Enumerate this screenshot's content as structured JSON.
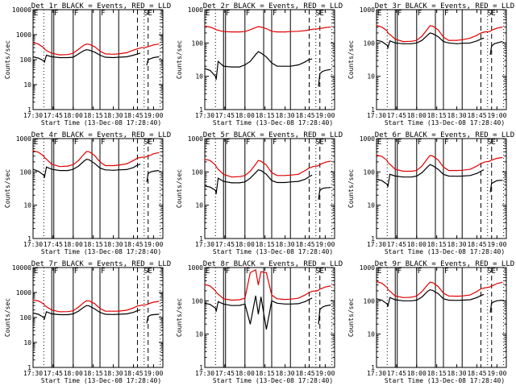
{
  "colors": {
    "events": "#000000",
    "lld": "#e00000",
    "background": "#ffffff"
  },
  "chart_data": {
    "type": "line",
    "grid": false,
    "xlabel": "Start Time (13-Dec-08 17:28:40)",
    "ylabel": "Counts/sec",
    "x_tick_labels": [
      "17:30",
      "17:45",
      "18:00",
      "18:15",
      "18:30",
      "18:45",
      "19:00"
    ],
    "x_ticks_minutes": [
      0,
      15,
      30,
      45,
      60,
      75,
      90
    ],
    "xlim_minutes": [
      0,
      97
    ],
    "vertical_markers": {
      "solid_minutes": [
        14,
        15.5,
        30,
        44,
        50,
        64
      ],
      "dotted_minutes": [
        8,
        83,
        95
      ],
      "dashed_minutes": [
        78,
        86
      ],
      "labels": [
        {
          "text": "E",
          "minute": 0
        },
        {
          "text": "F",
          "minute": 15
        },
        {
          "text": "F",
          "minute": 30
        },
        {
          "text": "F",
          "minute": 50
        },
        {
          "text": "SE",
          "minute": 82
        }
      ]
    },
    "x_minutes": [
      0,
      4,
      8,
      8.5,
      10,
      14,
      20,
      26,
      30,
      34,
      38,
      40,
      42,
      46,
      50,
      54,
      60,
      64,
      70,
      75,
      78,
      80,
      81,
      84,
      85,
      86,
      88,
      90,
      94
    ],
    "panels": [
      {
        "title": "Det 1r BLACK = Events, RED = LLD",
        "yticks": [
          "1",
          "10",
          "100",
          "1000",
          "10000"
        ],
        "ylim": [
          1,
          10000
        ],
        "series": [
          {
            "name": "RED = LLD",
            "values": [
              480,
              420,
              300,
              270,
              230,
              180,
              155,
              160,
              180,
              260,
              380,
              420,
              410,
              330,
              220,
              170,
              165,
              170,
              190,
              240,
              270,
              290,
              300,
              310,
              320,
              330,
              360,
              390,
              420
            ]
          },
          {
            "name": "BLACK = Events",
            "values": [
              130,
              115,
              90,
              80,
              150,
              130,
              120,
              120,
              125,
              170,
              230,
              250,
              240,
              200,
              150,
              125,
              120,
              125,
              130,
              150,
              170,
              180,
              null,
              null,
              60,
              100,
              110,
              120,
              130
            ]
          }
        ]
      },
      {
        "title": "Det 2r BLACK = Events, RED = LLD",
        "yticks": [
          "1",
          "10",
          "100",
          "1000"
        ],
        "ylim": [
          1,
          1000
        ],
        "series": [
          {
            "name": "RED = LLD",
            "values": [
              320,
              300,
              260,
              250,
              240,
              220,
              215,
              215,
              220,
              250,
              290,
              310,
              300,
              270,
              225,
              215,
              215,
              220,
              225,
              235,
              250,
              255,
              260,
              265,
              270,
              275,
              280,
              290,
              300
            ]
          },
          {
            "name": "BLACK = Events",
            "values": [
              17,
              15,
              10,
              8,
              28,
              20,
              19,
              19,
              22,
              28,
              45,
              55,
              50,
              38,
              25,
              20,
              20,
              20,
              22,
              27,
              32,
              33,
              null,
              null,
              5,
              12,
              14,
              15,
              16
            ]
          }
        ]
      },
      {
        "title": "Det 3r BLACK = Events, RED = LLD",
        "yticks": [
          "1",
          "10",
          "100",
          "1000"
        ],
        "ylim": [
          1,
          1000
        ],
        "series": [
          {
            "name": "RED = LLD",
            "values": [
              340,
              300,
              230,
              200,
              180,
              130,
              110,
              112,
              120,
              160,
              260,
              330,
              320,
              250,
              150,
              120,
              120,
              125,
              140,
              170,
              200,
              210,
              215,
              220,
              225,
              240,
              260,
              280,
              300
            ]
          },
          {
            "name": "BLACK = Events",
            "values": [
              120,
              110,
              85,
              72,
              115,
              100,
              95,
              95,
              100,
              120,
              170,
              200,
              190,
              155,
              110,
              100,
              95,
              98,
              100,
              115,
              130,
              140,
              null,
              null,
              45,
              80,
              95,
              100,
              110
            ]
          }
        ]
      },
      {
        "title": "Det 4r BLACK = Events, RED = LLD",
        "yticks": [
          "1",
          "10",
          "100",
          "1000"
        ],
        "ylim": [
          1,
          1000
        ],
        "series": [
          {
            "name": "RED = LLD",
            "values": [
              430,
              390,
              300,
              270,
              240,
              170,
              145,
              150,
              165,
              220,
              340,
              410,
              400,
              310,
              200,
              155,
              155,
              160,
              175,
              220,
              260,
              270,
              275,
              280,
              290,
              300,
              320,
              350,
              380
            ]
          },
          {
            "name": "BLACK = Events",
            "values": [
              120,
              105,
              80,
              68,
              140,
              120,
              110,
              110,
              120,
              150,
              210,
              240,
              230,
              180,
              130,
              115,
              112,
              115,
              118,
              135,
              160,
              170,
              null,
              null,
              50,
              90,
              100,
              105,
              110
            ]
          }
        ]
      },
      {
        "title": "Det 5r BLACK = Events, RED = LLD",
        "yticks": [
          "1",
          "10",
          "100",
          "1000"
        ],
        "ylim": [
          1,
          1000
        ],
        "series": [
          {
            "name": "RED = LLD",
            "values": [
              240,
              220,
              160,
              145,
              120,
              85,
              70,
              72,
              78,
              105,
              170,
              220,
              210,
              160,
              95,
              78,
              78,
              80,
              85,
              110,
              130,
              140,
              145,
              150,
              155,
              165,
              180,
              195,
              210
            ]
          },
          {
            "name": "BLACK = Events",
            "values": [
              38,
              35,
              28,
              22,
              65,
              52,
              47,
              47,
              50,
              65,
              95,
              115,
              110,
              85,
              55,
              48,
              48,
              50,
              52,
              60,
              72,
              80,
              null,
              null,
              15,
              28,
              32,
              33,
              34
            ]
          }
        ]
      },
      {
        "title": "Det 6r BLACK = Events, RED = LLD",
        "yticks": [
          "1",
          "10",
          "100",
          "1000"
        ],
        "ylim": [
          1,
          1000
        ],
        "series": [
          {
            "name": "RED = LLD",
            "values": [
              320,
              290,
              220,
              190,
              170,
              120,
              105,
              105,
              110,
              150,
              250,
              310,
              300,
              230,
              140,
              110,
              110,
              112,
              120,
              150,
              180,
              190,
              200,
              205,
              215,
              225,
              240,
              255,
              270
            ]
          },
          {
            "name": "BLACK = Events",
            "values": [
              60,
              55,
              42,
              36,
              85,
              75,
              70,
              70,
              75,
              95,
              140,
              165,
              155,
              120,
              85,
              75,
              74,
              75,
              78,
              90,
              105,
              115,
              null,
              null,
              25,
              45,
              50,
              55,
              56
            ]
          }
        ]
      },
      {
        "title": "Det 7r BLACK = Events, RED = LLD",
        "yticks": [
          "1",
          "10",
          "100",
          "1000",
          "10000"
        ],
        "ylim": [
          1,
          10000
        ],
        "series": [
          {
            "name": "RED = LLD",
            "values": [
              500,
              460,
              350,
              310,
              270,
              200,
              170,
              172,
              185,
              260,
              400,
              470,
              460,
              360,
              230,
              180,
              178,
              180,
              195,
              240,
              290,
              300,
              310,
              320,
              330,
              350,
              380,
              410,
              440
            ]
          },
          {
            "name": "BLACK = Events",
            "values": [
              150,
              135,
              100,
              88,
              170,
              140,
              130,
              130,
              140,
              180,
              260,
              300,
              290,
              220,
              160,
              135,
              132,
              135,
              140,
              160,
              190,
              200,
              null,
              null,
              60,
              110,
              125,
              130,
              135
            ]
          }
        ]
      },
      {
        "title": "Det 8r BLACK = Events, RED = LLD",
        "yticks": [
          "1",
          "10",
          "100",
          "1000"
        ],
        "ylim": [
          1,
          1000
        ],
        "series": [
          {
            "name": "RED = LLD",
            "values": [
              310,
              280,
              200,
              180,
              160,
              115,
              105,
              108,
              120,
              700,
              850,
              300,
              750,
              700,
              150,
              115,
              110,
              112,
              120,
              150,
              180,
              190,
              195,
              200,
              210,
              225,
              240,
              260,
              280
            ]
          },
          {
            "name": "BLACK = Events",
            "values": [
              85,
              78,
              60,
              48,
              95,
              80,
              72,
              73,
              80,
              20,
              140,
              40,
              130,
              14,
              100,
              85,
              80,
              80,
              82,
              95,
              110,
              120,
              null,
              null,
              20,
              55,
              65,
              70,
              75
            ]
          }
        ]
      },
      {
        "title": "Det 9r BLACK = Events, RED = LLD",
        "yticks": [
          "1",
          "10",
          "100",
          "1000"
        ],
        "ylim": [
          1,
          1000
        ],
        "series": [
          {
            "name": "RED = LLD",
            "values": [
              380,
              340,
              250,
              220,
              195,
              140,
              125,
              128,
              140,
              190,
              300,
              360,
              350,
              270,
              170,
              140,
              138,
              140,
              150,
              190,
              230,
              240,
              245,
              255,
              265,
              280,
              300,
              330,
              360
            ]
          },
          {
            "name": "BLACK = Events",
            "values": [
              115,
              105,
              80,
              68,
              125,
              108,
              100,
              100,
              105,
              130,
              190,
              215,
              205,
              165,
              115,
              105,
              103,
              105,
              108,
              125,
              145,
              155,
              null,
              null,
              45,
              85,
              95,
              100,
              105
            ]
          }
        ]
      }
    ]
  }
}
